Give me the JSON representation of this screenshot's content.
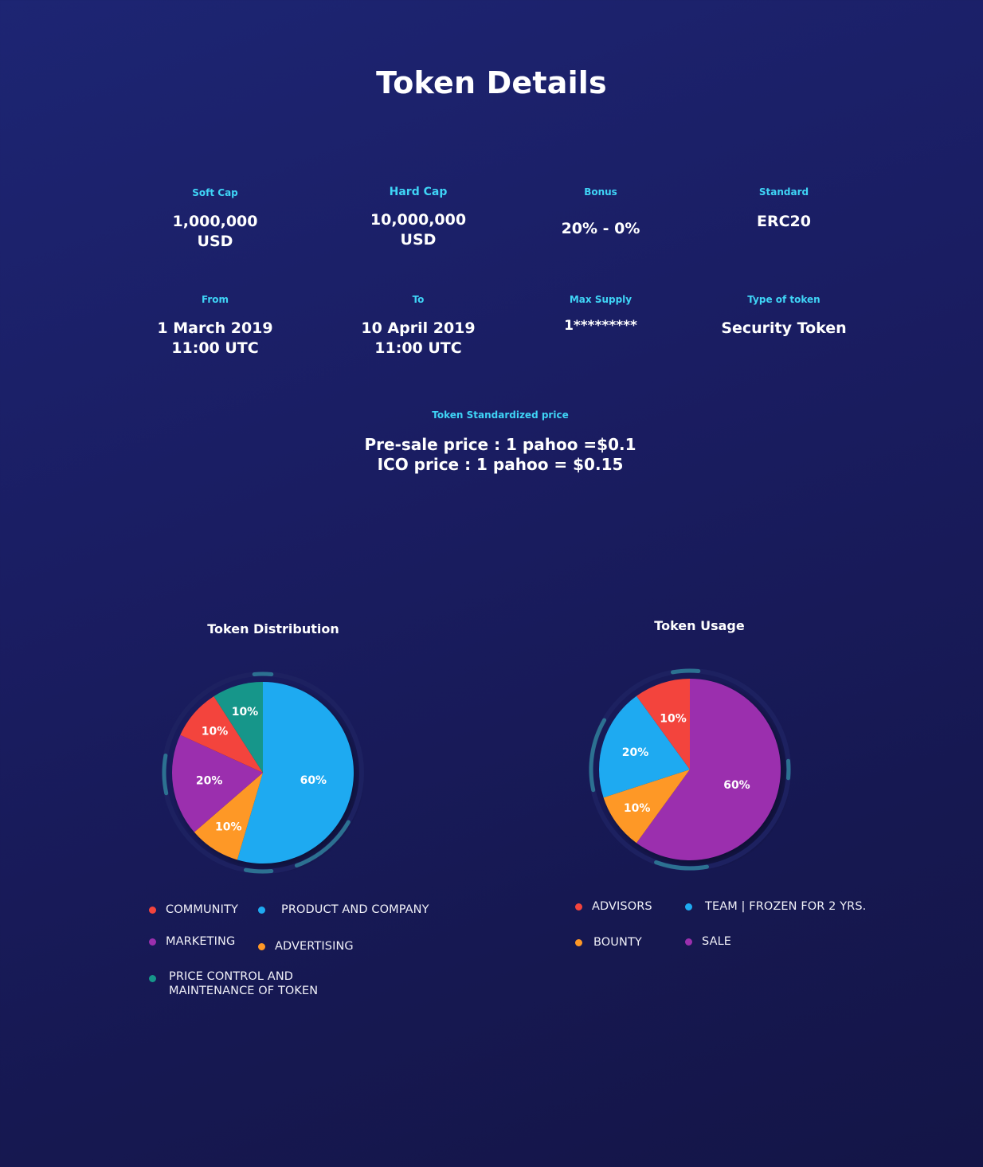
{
  "page_title": "Token Details",
  "details": [
    {
      "label": "Soft Cap",
      "value": "1,000,000\nUSD"
    },
    {
      "label": "Hard Cap",
      "value": "10,000,000\nUSD"
    },
    {
      "label": "Bonus",
      "value": "20% - 0%"
    },
    {
      "label": "Standard",
      "value": "ERC20"
    },
    {
      "label": "From",
      "value": "1 March 2019\n11:00 UTC"
    },
    {
      "label": "To",
      "value": "10 April 2019\n11:00 UTC"
    },
    {
      "label": "Max Supply",
      "value": "1*********"
    },
    {
      "label": "Type of token",
      "value": "Security Token"
    }
  ],
  "price": {
    "label": "Token Standardized price",
    "presale": "Pre-sale price : 1 pahoo =$0.1",
    "ico": "ICO price : 1 pahoo = $0.15"
  },
  "colors": {
    "red": "#f3443d",
    "blue": "#1eaaf1",
    "purple": "#9b2fae",
    "orange": "#fe9826",
    "teal": "#16968a",
    "label": "#3fd4f6"
  },
  "chart_data": [
    {
      "type": "pie",
      "title": "Token Distribution",
      "slices": [
        {
          "name": "PRODUCT AND COMPANY",
          "value": 60,
          "label": "60%",
          "color": "#1eaaf1"
        },
        {
          "name": "ADVERTISING",
          "value": 10,
          "label": "10%",
          "color": "#fe9826"
        },
        {
          "name": "MARKETING",
          "value": 20,
          "label": "20%",
          "color": "#9b2fae"
        },
        {
          "name": "COMMUNITY",
          "value": 10,
          "label": "10%",
          "color": "#f3443d"
        },
        {
          "name": "PRICE CONTROL AND\nMAINTENANCE OF TOKEN",
          "value": 10,
          "label": "10%",
          "color": "#16968a"
        }
      ],
      "legend": [
        {
          "name": "COMMUNITY",
          "color": "#f3443d"
        },
        {
          "name": "PRODUCT AND COMPANY",
          "color": "#1eaaf1"
        },
        {
          "name": "MARKETING",
          "color": "#9b2fae"
        },
        {
          "name": "ADVERTISING",
          "color": "#fe9826"
        },
        {
          "name": "PRICE CONTROL AND\nMAINTENANCE OF TOKEN",
          "color": "#16968a"
        }
      ]
    },
    {
      "type": "pie",
      "title": "Token Usage",
      "slices": [
        {
          "name": "SALE",
          "value": 60,
          "label": "60%",
          "color": "#9b2fae"
        },
        {
          "name": "BOUNTY",
          "value": 10,
          "label": "10%",
          "color": "#fe9826"
        },
        {
          "name": "TEAM | FROZEN FOR 2 YRS.",
          "value": 20,
          "label": "20%",
          "color": "#1eaaf1"
        },
        {
          "name": "ADVISORS",
          "value": 10,
          "label": "10%",
          "color": "#f3443d"
        }
      ],
      "legend": [
        {
          "name": "ADVISORS",
          "color": "#f3443d"
        },
        {
          "name": "TEAM | FROZEN FOR 2 YRS.",
          "color": "#1eaaf1"
        },
        {
          "name": "BOUNTY",
          "color": "#fe9826"
        },
        {
          "name": "SALE",
          "color": "#9b2fae"
        }
      ]
    }
  ]
}
